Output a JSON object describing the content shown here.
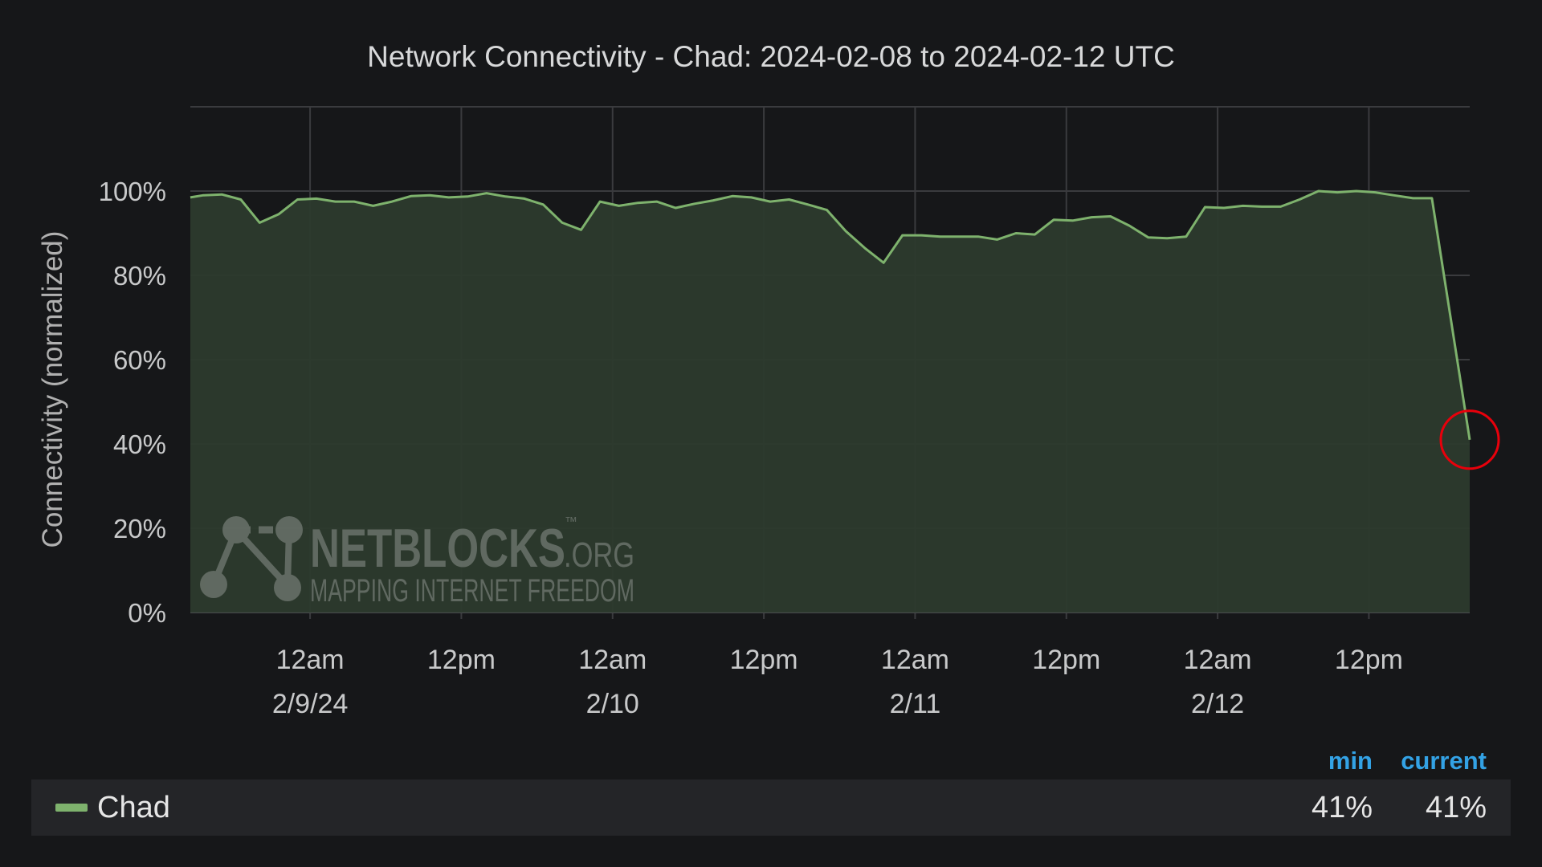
{
  "chart_data": {
    "type": "area",
    "title": "Network Connectivity - Chad: 2024-02-08 to 2024-02-12 UTC",
    "ylabel": "Connectivity (normalized)",
    "xlabel": "",
    "y_unit": "%",
    "ylim": [
      0,
      120
    ],
    "yticks": [
      "0%",
      "20%",
      "40%",
      "60%",
      "80%",
      "100%"
    ],
    "xlim": [
      "2024-02-08T14:30",
      "2024-02-12T20:00"
    ],
    "xticks": [
      {
        "at": "2024-02-09T00:00",
        "line1": "12am",
        "line2": "2/9/24"
      },
      {
        "at": "2024-02-09T12:00",
        "line1": "12pm",
        "line2": ""
      },
      {
        "at": "2024-02-10T00:00",
        "line1": "12am",
        "line2": "2/10"
      },
      {
        "at": "2024-02-10T12:00",
        "line1": "12pm",
        "line2": ""
      },
      {
        "at": "2024-02-11T00:00",
        "line1": "12am",
        "line2": "2/11"
      },
      {
        "at": "2024-02-11T12:00",
        "line1": "12pm",
        "line2": ""
      },
      {
        "at": "2024-02-12T00:00",
        "line1": "12am",
        "line2": "2/12"
      },
      {
        "at": "2024-02-12T12:00",
        "line1": "12pm",
        "line2": ""
      }
    ],
    "grid": true,
    "legend_placement": "bottom",
    "series": [
      {
        "name": "Chad",
        "color": "#7eb26d",
        "points": [
          [
            "2024-02-08T14:30",
            98.5
          ],
          [
            "2024-02-08T15:30",
            99
          ],
          [
            "2024-02-08T17:00",
            99.2
          ],
          [
            "2024-02-08T18:30",
            98
          ],
          [
            "2024-02-08T20:00",
            92.5
          ],
          [
            "2024-02-08T21:30",
            94.5
          ],
          [
            "2024-02-08T23:00",
            98
          ],
          [
            "2024-02-09T00:30",
            98.2
          ],
          [
            "2024-02-09T02:00",
            97.5
          ],
          [
            "2024-02-09T03:30",
            97.5
          ],
          [
            "2024-02-09T05:00",
            96.5
          ],
          [
            "2024-02-09T06:30",
            97.5
          ],
          [
            "2024-02-09T08:00",
            98.8
          ],
          [
            "2024-02-09T09:30",
            99
          ],
          [
            "2024-02-09T11:00",
            98.5
          ],
          [
            "2024-02-09T12:30",
            98.7
          ],
          [
            "2024-02-09T14:00",
            99.5
          ],
          [
            "2024-02-09T15:30",
            98.7
          ],
          [
            "2024-02-09T17:00",
            98.2
          ],
          [
            "2024-02-09T18:30",
            96.8
          ],
          [
            "2024-02-09T20:00",
            92.5
          ],
          [
            "2024-02-09T21:30",
            90.8
          ],
          [
            "2024-02-09T23:00",
            97.5
          ],
          [
            "2024-02-10T00:30",
            96.5
          ],
          [
            "2024-02-10T02:00",
            97.2
          ],
          [
            "2024-02-10T03:30",
            97.5
          ],
          [
            "2024-02-10T05:00",
            96
          ],
          [
            "2024-02-10T06:30",
            97
          ],
          [
            "2024-02-10T08:00",
            97.8
          ],
          [
            "2024-02-10T09:30",
            98.8
          ],
          [
            "2024-02-10T11:00",
            98.5
          ],
          [
            "2024-02-10T12:30",
            97.5
          ],
          [
            "2024-02-10T14:00",
            98
          ],
          [
            "2024-02-10T15:30",
            96.8
          ],
          [
            "2024-02-10T17:00",
            95.5
          ],
          [
            "2024-02-10T18:30",
            90.5
          ],
          [
            "2024-02-10T20:00",
            86.5
          ],
          [
            "2024-02-10T21:30",
            83
          ],
          [
            "2024-02-10T23:00",
            89.5
          ],
          [
            "2024-02-11T00:30",
            89.5
          ],
          [
            "2024-02-11T02:00",
            89.2
          ],
          [
            "2024-02-11T03:30",
            89.2
          ],
          [
            "2024-02-11T05:00",
            89.2
          ],
          [
            "2024-02-11T06:30",
            88.5
          ],
          [
            "2024-02-11T08:00",
            90
          ],
          [
            "2024-02-11T09:30",
            89.7
          ],
          [
            "2024-02-11T11:00",
            93.2
          ],
          [
            "2024-02-11T12:30",
            93
          ],
          [
            "2024-02-11T14:00",
            93.8
          ],
          [
            "2024-02-11T15:30",
            94
          ],
          [
            "2024-02-11T17:00",
            91.8
          ],
          [
            "2024-02-11T18:30",
            89
          ],
          [
            "2024-02-11T20:00",
            88.8
          ],
          [
            "2024-02-11T21:30",
            89.2
          ],
          [
            "2024-02-11T23:00",
            96.2
          ],
          [
            "2024-02-12T00:30",
            96
          ],
          [
            "2024-02-12T02:00",
            96.5
          ],
          [
            "2024-02-12T03:30",
            96.3
          ],
          [
            "2024-02-12T05:00",
            96.3
          ],
          [
            "2024-02-12T06:30",
            98
          ],
          [
            "2024-02-12T08:00",
            100
          ],
          [
            "2024-02-12T09:30",
            99.7
          ],
          [
            "2024-02-12T11:00",
            100
          ],
          [
            "2024-02-12T12:30",
            99.7
          ],
          [
            "2024-02-12T14:00",
            99
          ],
          [
            "2024-02-12T15:30",
            98.3
          ],
          [
            "2024-02-12T17:00",
            98.3
          ],
          [
            "2024-02-12T20:00",
            41
          ]
        ]
      }
    ],
    "annotations": [
      {
        "type": "circle",
        "at": "2024-02-12T20:00",
        "value": 41,
        "color": "#e8000b"
      }
    ]
  },
  "watermark": {
    "logo": "NETBLOCKS",
    "suffix": ".ORG",
    "tm": "™",
    "tagline": "MAPPING INTERNET FREEDOM"
  },
  "legend": {
    "headers": [
      "min",
      "current"
    ],
    "rows": [
      {
        "name": "Chad",
        "color": "#7eb26d",
        "min": "41%",
        "current": "41%"
      }
    ]
  },
  "colors": {
    "background": "#161719",
    "grid": "#3a3b3e",
    "text": "#d8d9da",
    "series_fill": "#2c3a2d",
    "legend_header": "#33a2e5"
  }
}
